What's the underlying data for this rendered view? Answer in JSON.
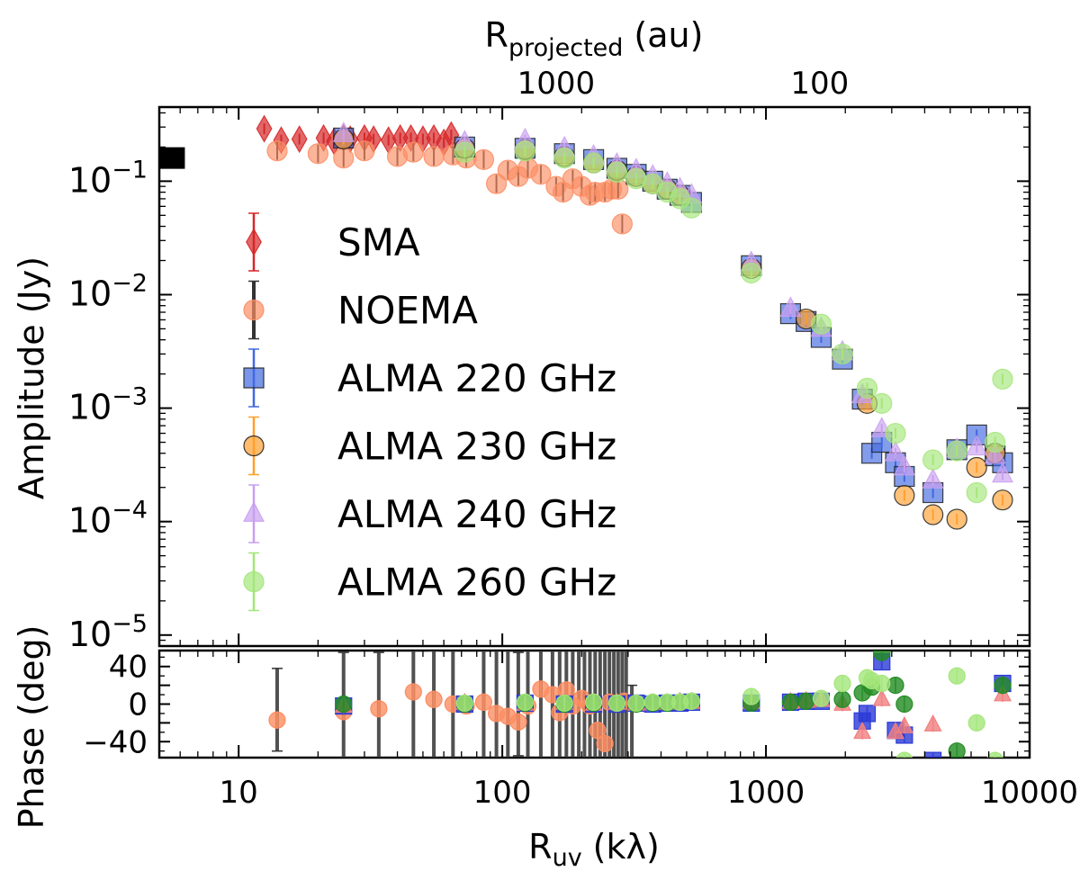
{
  "chart_data": [
    {
      "type": "scatter",
      "panel": "amplitude",
      "ylabel": "Amplitude (Jy)",
      "top_xlabel_main": "R",
      "top_xlabel_sub": "projected",
      "top_xlabel_unit": "(au)",
      "xscale": "log",
      "yscale": "log",
      "xlim": [
        5,
        10000
      ],
      "ylim": [
        8e-06,
        0.45
      ],
      "yticks": [
        {
          "value": 0.1,
          "base": "10",
          "exp": "−1"
        },
        {
          "value": 0.01,
          "base": "10",
          "exp": "−2"
        },
        {
          "value": 0.001,
          "base": "10",
          "exp": "−3"
        },
        {
          "value": 0.0001,
          "base": "10",
          "exp": "−4"
        },
        {
          "value": 1e-05,
          "base": "10",
          "exp": "−5"
        }
      ],
      "top_ticks": [
        {
          "x": 160,
          "label": "1000"
        },
        {
          "x": 1600,
          "label": "100"
        }
      ],
      "legend_position": "center-left",
      "total_flux_marker": {
        "x": 5.6,
        "y": 0.16,
        "color": "#000000"
      },
      "series": [
        {
          "name": "SMA",
          "marker": "diamond",
          "color": "#d62728",
          "errcolor": "#d62728",
          "x": [
            12.5,
            14.5,
            17,
            21,
            23,
            25,
            26.5,
            30,
            32.5,
            37,
            41,
            45,
            50,
            55,
            60,
            64
          ],
          "y": [
            0.29,
            0.23,
            0.235,
            0.24,
            0.225,
            0.24,
            0.235,
            0.24,
            0.235,
            0.23,
            0.24,
            0.24,
            0.235,
            0.24,
            0.22,
            0.255
          ]
        },
        {
          "name": "NOEMA",
          "marker": "circle",
          "color": "#fc8d62",
          "errcolor": "#333333",
          "x": [
            14,
            20,
            25,
            30,
            40,
            46,
            55,
            65,
            73,
            85,
            95,
            105,
            115,
            125,
            140,
            160,
            170,
            185,
            200,
            215,
            225,
            245,
            260,
            275,
            285
          ],
          "y": [
            0.185,
            0.175,
            0.16,
            0.185,
            0.165,
            0.18,
            0.165,
            0.17,
            0.16,
            0.155,
            0.095,
            0.125,
            0.11,
            0.13,
            0.115,
            0.09,
            0.08,
            0.105,
            0.09,
            0.075,
            0.08,
            0.08,
            0.085,
            0.085,
            0.042
          ]
        },
        {
          "name": "ALMA 220 GHz",
          "marker": "square",
          "color": "#4169e1",
          "errcolor": "#4169e1",
          "x": [
            25,
            72,
            122,
            172,
            222,
            272,
            322,
            372,
            422,
            472,
            522,
            880,
            1240,
            1420,
            1620,
            1950,
            2320,
            2520,
            2750,
            3100,
            3350,
            4300,
            5300,
            6300,
            7400,
            7900
          ],
          "y": [
            0.24,
            0.2,
            0.195,
            0.175,
            0.155,
            0.13,
            0.115,
            0.1,
            0.085,
            0.075,
            0.065,
            0.018,
            0.0068,
            0.0058,
            0.0042,
            0.0027,
            0.0012,
            0.0004,
            0.0005,
            0.00033,
            0.00025,
            0.00018,
            0.00043,
            0.00058,
            0.00038,
            0.00033
          ]
        },
        {
          "name": "ALMA 230 GHz",
          "marker": "circle",
          "color": "#ff9f2e",
          "errcolor": "#ff9f2e",
          "x": [
            25,
            72,
            122,
            172,
            222,
            272,
            322,
            372,
            422,
            472,
            880,
            1420,
            2420,
            3350,
            4300,
            5300,
            6300,
            7400,
            7900
          ],
          "y": [
            0.235,
            0.195,
            0.19,
            0.165,
            0.145,
            0.125,
            0.11,
            0.095,
            0.085,
            0.075,
            0.017,
            0.0061,
            0.0011,
            0.00017,
            0.000115,
            0.000105,
            0.0003,
            0.0004,
            0.000155
          ]
        },
        {
          "name": "ALMA 240 GHz",
          "marker": "triangle",
          "color": "#c9a0f0",
          "errcolor": "#c9a0f0",
          "x": [
            25,
            72,
            122,
            172,
            222,
            272,
            322,
            372,
            422,
            472,
            522,
            880,
            1240,
            1620,
            1950,
            2320,
            2750,
            3100,
            3350,
            4300,
            5300,
            6300,
            7400,
            7900
          ],
          "y": [
            0.26,
            0.22,
            0.23,
            0.195,
            0.165,
            0.14,
            0.125,
            0.11,
            0.095,
            0.085,
            0.075,
            0.019,
            0.0075,
            0.005,
            0.0031,
            0.0013,
            0.00065,
            0.0004,
            0.0003,
            0.00023,
            0.00043,
            0.00045,
            0.00038,
            0.00026
          ]
        },
        {
          "name": "ALMA 260 GHz",
          "marker": "circle",
          "color": "#a4e67a",
          "errcolor": "#a4e67a",
          "x": [
            72,
            122,
            172,
            222,
            272,
            322,
            372,
            422,
            472,
            522,
            880,
            1620,
            1950,
            2420,
            2750,
            3100,
            4300,
            5300,
            6300,
            7400,
            7900
          ],
          "y": [
            0.18,
            0.185,
            0.16,
            0.145,
            0.12,
            0.105,
            0.095,
            0.08,
            0.07,
            0.058,
            0.0155,
            0.0055,
            0.003,
            0.0015,
            0.0011,
            0.0006,
            0.00035,
            0.00042,
            0.00018,
            0.0005,
            0.0018
          ]
        }
      ]
    },
    {
      "type": "scatter",
      "panel": "phase",
      "ylabel": "Phase (deg)",
      "xlabel_main": "R",
      "xlabel_sub": "uv",
      "xlabel_unit": "(kλ)",
      "xscale": "log",
      "xlim": [
        5,
        10000
      ],
      "ylim": [
        -57,
        57
      ],
      "xticks": [
        {
          "value": 10,
          "label": "10"
        },
        {
          "value": 100,
          "label": "100"
        },
        {
          "value": 1000,
          "label": "1000"
        },
        {
          "value": 10000,
          "label": "10000"
        }
      ],
      "yticks": [
        {
          "value": 40,
          "label": "40"
        },
        {
          "value": 0,
          "label": "0"
        },
        {
          "value": -40,
          "label": "−40"
        }
      ],
      "noema_errorbars": [
        {
          "x": 14,
          "lo": -50,
          "hi": 38
        },
        {
          "x": 25,
          "lo": -60,
          "hi": 55
        },
        {
          "x": 34,
          "lo": -60,
          "hi": 55
        },
        {
          "x": 46,
          "lo": -60,
          "hi": 60
        },
        {
          "x": 55,
          "lo": -57,
          "hi": 57
        },
        {
          "x": 65,
          "lo": -60,
          "hi": 60
        },
        {
          "x": 85,
          "lo": -60,
          "hi": 60
        },
        {
          "x": 95,
          "lo": -60,
          "hi": 60
        },
        {
          "x": 105,
          "lo": -60,
          "hi": 60
        },
        {
          "x": 115,
          "lo": -55,
          "hi": 55
        },
        {
          "x": 125,
          "lo": -60,
          "hi": 60
        },
        {
          "x": 140,
          "lo": -60,
          "hi": 60
        },
        {
          "x": 155,
          "lo": -60,
          "hi": 60
        },
        {
          "x": 165,
          "lo": -60,
          "hi": 60
        },
        {
          "x": 175,
          "lo": -60,
          "hi": 60
        },
        {
          "x": 185,
          "lo": -60,
          "hi": 60
        },
        {
          "x": 195,
          "lo": -60,
          "hi": 60
        },
        {
          "x": 205,
          "lo": -60,
          "hi": 60
        },
        {
          "x": 215,
          "lo": -60,
          "hi": 60
        },
        {
          "x": 225,
          "lo": -60,
          "hi": 60
        },
        {
          "x": 235,
          "lo": -60,
          "hi": 60
        },
        {
          "x": 245,
          "lo": -60,
          "hi": 60
        },
        {
          "x": 255,
          "lo": -60,
          "hi": 60
        },
        {
          "x": 265,
          "lo": -60,
          "hi": 60
        },
        {
          "x": 275,
          "lo": -60,
          "hi": 60
        },
        {
          "x": 285,
          "lo": -60,
          "hi": 60
        },
        {
          "x": 295,
          "lo": -60,
          "hi": 60
        },
        {
          "x": 310,
          "lo": -60,
          "hi": 20
        }
      ],
      "series": [
        {
          "name": "NOEMA",
          "marker": "circle",
          "color": "#fc8d62",
          "x": [
            14,
            25,
            34,
            46,
            55,
            65,
            73,
            85,
            95,
            105,
            115,
            125,
            140,
            155,
            165,
            175,
            185,
            200,
            215,
            230,
            245,
            255,
            275,
            290
          ],
          "y": [
            -17,
            -8,
            -5,
            13,
            5,
            0,
            -2,
            2,
            -10,
            -13,
            -19,
            -2,
            16,
            10,
            -9,
            15,
            -2,
            6,
            -2,
            -28,
            -42,
            2,
            0,
            3
          ]
        },
        {
          "name": "ALMA 220 GHz",
          "marker": "square",
          "color": "#2b39d6",
          "x": [
            25,
            72,
            122,
            172,
            222,
            272,
            322,
            372,
            422,
            472,
            522,
            880,
            1240,
            1420,
            1620,
            2320,
            2420,
            2750,
            3100,
            3350,
            4300,
            7900
          ],
          "y": [
            -2,
            0,
            1,
            0,
            0,
            0,
            1,
            0,
            1,
            1,
            2,
            1,
            2,
            3,
            3,
            -18,
            -10,
            45,
            -28,
            -33,
            -60,
            22
          ]
        },
        {
          "name": "ALMA 240 GHz",
          "marker": "triangle",
          "color": "#f08080",
          "x": [
            25,
            72,
            122,
            172,
            222,
            272,
            322,
            372,
            422,
            472,
            522,
            880,
            1240,
            1420,
            1620,
            1950,
            2320,
            2750,
            3100,
            3350,
            4300,
            7900
          ],
          "y": [
            -2,
            1,
            0,
            1,
            0,
            1,
            0,
            1,
            1,
            2,
            2,
            2,
            2,
            3,
            4,
            0,
            -30,
            5,
            -30,
            -24,
            -22,
            10
          ]
        },
        {
          "name": "ALMA 230 GHz",
          "marker": "circle",
          "color": "#228b22",
          "x": [
            25,
            72,
            122,
            172,
            222,
            272,
            322,
            372,
            422,
            472,
            522,
            880,
            1240,
            1420,
            1950,
            2320,
            2520,
            2750,
            3100,
            3350,
            5300,
            7900
          ],
          "y": [
            0,
            0,
            1,
            0,
            1,
            1,
            0,
            1,
            1,
            2,
            3,
            1,
            2,
            3,
            5,
            12,
            18,
            55,
            20,
            0,
            -50,
            20
          ]
        },
        {
          "name": "ALMA 260 GHz",
          "marker": "circle",
          "color": "#a4e67a",
          "x": [
            72,
            122,
            172,
            222,
            272,
            322,
            372,
            422,
            472,
            522,
            880,
            1620,
            1950,
            2420,
            2520,
            2750,
            3350,
            5300,
            6300,
            7400
          ],
          "y": [
            1,
            2,
            1,
            2,
            1,
            1,
            2,
            2,
            2,
            3,
            8,
            6,
            22,
            28,
            25,
            22,
            -60,
            30,
            -20,
            -60
          ]
        }
      ]
    }
  ]
}
